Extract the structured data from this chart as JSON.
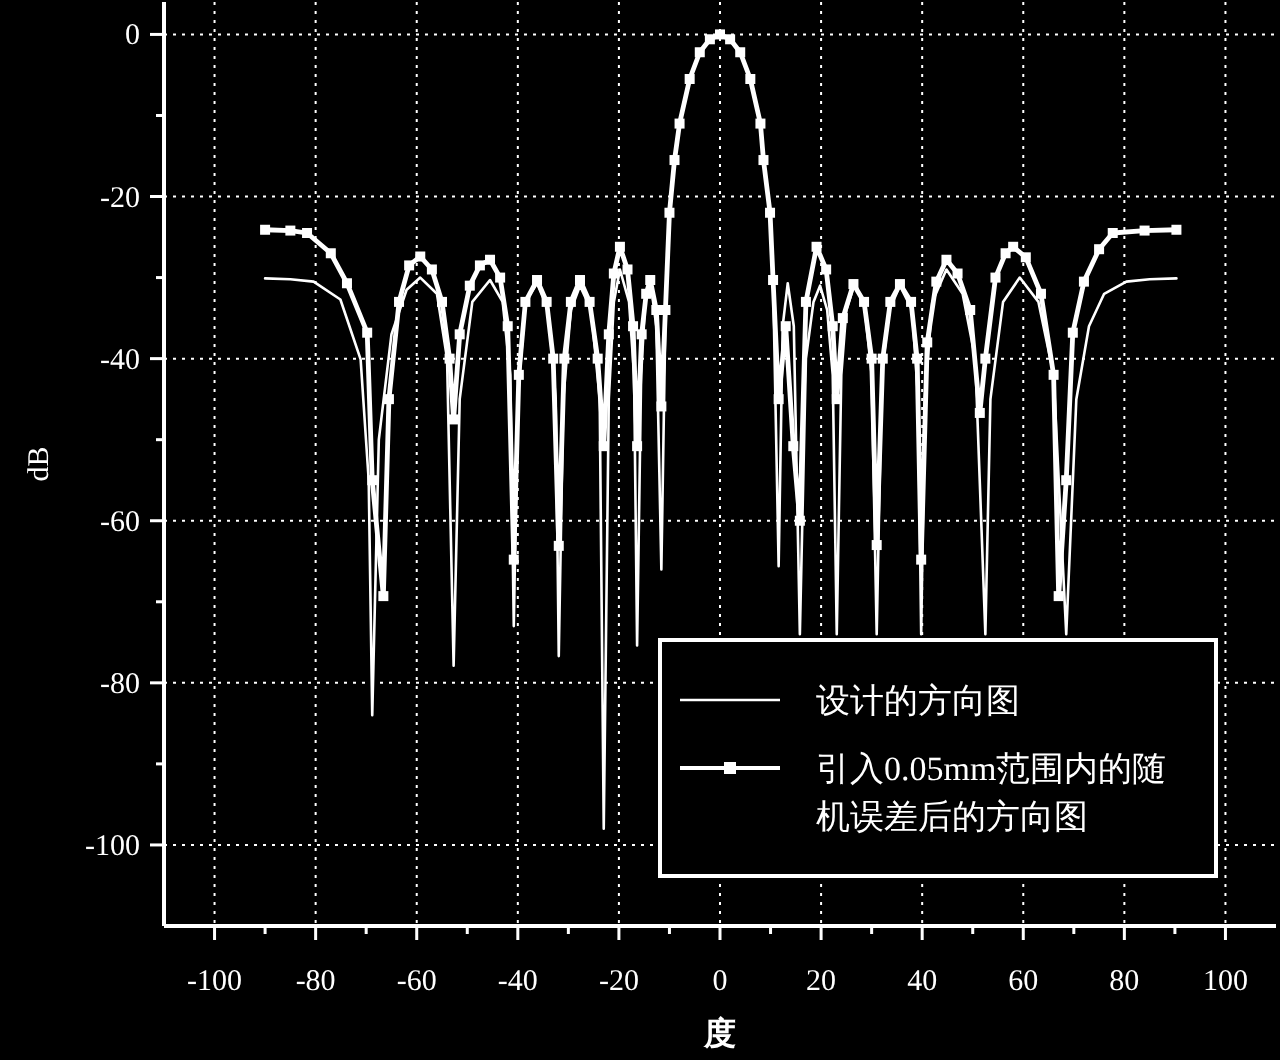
{
  "chart_data": {
    "type": "line",
    "xlabel": "度",
    "ylabel": "dB",
    "xlim": [
      -110,
      110
    ],
    "ylim": [
      -110,
      4
    ],
    "xticks": [
      -100,
      {
        "value": -90,
        "label": null
      },
      -80,
      {
        "value": -70,
        "label": null
      },
      -60,
      {
        "value": -50,
        "label": null
      },
      -40,
      {
        "value": -30,
        "label": null
      },
      -20,
      {
        "value": -10,
        "label": null
      },
      0,
      {
        "value": 10,
        "label": null
      },
      20,
      {
        "value": 30,
        "label": null
      },
      40,
      {
        "value": 50,
        "label": null
      },
      60,
      {
        "value": 70,
        "label": null
      },
      80,
      {
        "value": 90,
        "label": null
      },
      100
    ],
    "yticks": [
      0,
      {
        "value": -10,
        "label": null
      },
      -20,
      {
        "value": -30,
        "label": null
      },
      -40,
      {
        "value": -50,
        "label": null
      },
      -60,
      {
        "value": -70,
        "label": null
      },
      -80,
      {
        "value": -90,
        "label": null
      },
      -100
    ],
    "grid": true,
    "legend": "bottom right",
    "series": [
      {
        "name": "设计的方向图",
        "color": "#ffffff",
        "marker": "none",
        "line_style": "solid",
        "x": [
          -90,
          -85,
          -80.4,
          -75.1,
          -71.1,
          -69.5,
          -68.8,
          -67.5,
          -65,
          -62,
          -59.3,
          -56,
          -54,
          -52.7,
          -51.5,
          -49,
          -45.5,
          -43,
          -41.5,
          -40.8,
          -40,
          -38.5,
          -36.2,
          -34,
          -32.5,
          -31.9,
          -31,
          -29.5,
          -27.7,
          -25.5,
          -23.8,
          -23,
          -22,
          -21,
          -19.8,
          -18,
          -17,
          -16.4,
          -15.6,
          -14.8,
          -13.8,
          -12.6,
          -11.6,
          -10.8,
          -10,
          -9,
          -8,
          -6,
          -4,
          -2,
          0,
          2,
          4,
          6,
          8,
          8.6,
          9.9,
          10.5,
          11.6,
          12.4,
          13.4,
          14.6,
          15.8,
          17,
          18.5,
          19.8,
          21.2,
          22.3,
          23.1,
          24,
          25,
          26.5,
          28.5,
          30,
          31,
          32,
          33.5,
          35.6,
          38,
          39.2,
          39.8,
          40.5,
          42,
          44.8,
          48,
          50.5,
          52.5,
          53.5,
          56,
          59.3,
          63,
          66,
          68.5,
          70.5,
          73,
          76,
          80.4,
          85,
          90.3
        ],
        "values": [
          -30.1,
          -30.2,
          -30.5,
          -32.7,
          -40.1,
          -55,
          -84,
          -50,
          -37,
          -31.5,
          -30,
          -32,
          -40,
          -77.9,
          -45,
          -33,
          -30.3,
          -33,
          -42,
          -73,
          -45,
          -33,
          -30.7,
          -34,
          -45,
          -76.7,
          -45,
          -34,
          -31,
          -34,
          -45,
          -98,
          -45,
          -33,
          -29,
          -33,
          -42,
          -75.4,
          -42,
          -33,
          -30.3,
          -36,
          -66,
          -35,
          -22,
          -15.5,
          -11,
          -5.5,
          -2.2,
          -0.6,
          0,
          -0.6,
          -2.2,
          -5.5,
          -11,
          -15.5,
          -22,
          -30.3,
          -65.6,
          -36,
          -30.7,
          -36,
          -74,
          -40,
          -33,
          -31,
          -34,
          -42,
          -74,
          -42,
          -34,
          -31,
          -33,
          -42,
          -74,
          -42,
          -34,
          -31,
          -34,
          -45,
          -74,
          -45,
          -33,
          -29,
          -32,
          -40,
          -74,
          -45,
          -33,
          -30,
          -33,
          -42,
          -74,
          -45,
          -36,
          -32,
          -30.5,
          -30.2,
          -30.1
        ]
      },
      {
        "name": "引入0.05mm范围内的随机误差后的方向图",
        "color": "#ffffff",
        "marker": "square",
        "line_style": "solid",
        "x": [
          -90,
          -85,
          -81.7,
          -77,
          -73.8,
          -69.8,
          -68.8,
          -66.6,
          -65.5,
          -63.5,
          -61.5,
          -59.3,
          -57,
          -55,
          -53.5,
          -52.7,
          -51.5,
          -49.5,
          -47.5,
          -45.5,
          -43.5,
          -42,
          -40.8,
          -39.8,
          -38.5,
          -36.2,
          -34.3,
          -33,
          -31.9,
          -30.8,
          -29.5,
          -27.7,
          -25.8,
          -24.2,
          -23,
          -22,
          -21,
          -19.8,
          -18.3,
          -17.2,
          -16.4,
          -15.5,
          -14.6,
          -13.8,
          -12.6,
          -11.6,
          -10.8,
          -10,
          -9,
          -8,
          -6,
          -4,
          -2,
          0,
          2,
          4,
          6,
          8,
          8.6,
          9.9,
          10.5,
          11.6,
          13,
          14.5,
          15.8,
          17,
          19.1,
          21,
          22.3,
          23.1,
          24.3,
          26.4,
          28.5,
          30,
          31,
          32.2,
          33.7,
          35.6,
          37.8,
          39,
          39.8,
          41,
          42.8,
          44.8,
          47,
          49.5,
          51.4,
          52.5,
          54.5,
          56.5,
          58,
          60.5,
          63.5,
          66,
          67,
          68.5,
          69.8,
          72,
          75,
          77.7,
          84,
          90.3
        ],
        "values": [
          -24.1,
          -24.2,
          -24.5,
          -27,
          -30.7,
          -36.8,
          -55,
          -69.3,
          -45,
          -33,
          -28.5,
          -27.4,
          -29,
          -33,
          -40,
          -47.5,
          -37,
          -31,
          -28.5,
          -27.8,
          -30,
          -36,
          -64.8,
          -42,
          -33,
          -30.3,
          -33,
          -40,
          -63.1,
          -40,
          -33,
          -30.3,
          -33,
          -40,
          -50.8,
          -37,
          -29.5,
          -26.2,
          -29,
          -36,
          -50.8,
          -37,
          -32,
          -30.3,
          -34,
          -45.9,
          -34,
          -22,
          -15.5,
          -11,
          -5.5,
          -2.2,
          -0.6,
          0,
          -0.6,
          -2.2,
          -5.5,
          -11,
          -15.5,
          -22,
          -30.3,
          -45,
          -36,
          -50.8,
          -60,
          -33,
          -26.2,
          -29,
          -36,
          -45,
          -35,
          -30.8,
          -33,
          -40,
          -63,
          -40,
          -33,
          -30.8,
          -33,
          -40,
          -64.8,
          -38,
          -30.5,
          -27.8,
          -29.5,
          -34,
          -46.7,
          -40,
          -30,
          -27,
          -26.2,
          -27.5,
          -32,
          -42,
          -69.3,
          -55,
          -36.8,
          -30.5,
          -26.5,
          -24.5,
          -24.2,
          -24.1
        ]
      }
    ]
  }
}
